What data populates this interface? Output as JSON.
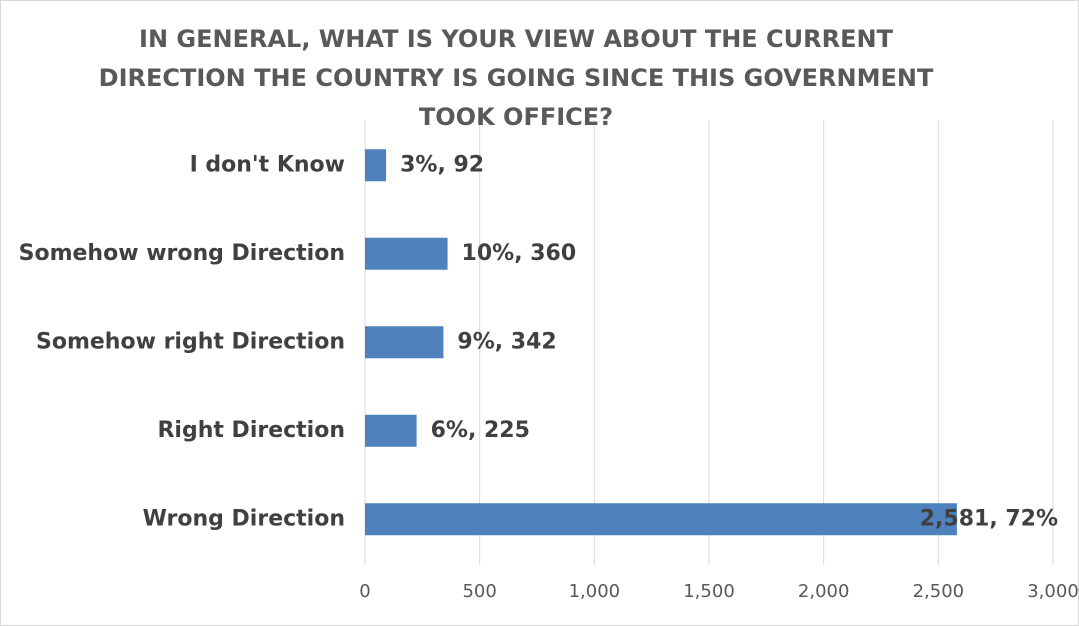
{
  "chart_data": {
    "type": "barh",
    "title": "IN GENERAL, WHAT IS YOUR VIEW ABOUT THE CURRENT DIRECTION THE COUNTRY IS GOING SINCE THIS GOVERNMENT TOOK OFFICE?",
    "categories": [
      "I don't Know",
      "Somehow wrong Direction",
      "Somehow right Direction",
      "Right Direction",
      "Wrong Direction"
    ],
    "values": [
      92,
      360,
      342,
      225,
      2581
    ],
    "value_labels": [
      "3%, 92",
      "10%, 360",
      "9%, 342",
      "6%, 225",
      "2,581, 72%"
    ],
    "color": "#4f81bd",
    "xlim": [
      0,
      3000
    ],
    "xticks": [
      0,
      500,
      {
        "value": 1000,
        "label": "1,000"
      },
      {
        "value": 1500,
        "label": "1,500"
      },
      {
        "value": 2000,
        "label": "2,000"
      },
      {
        "value": 2500,
        "label": "2,500"
      },
      {
        "value": 3000,
        "label": "3,000"
      }
    ],
    "grid": true
  }
}
